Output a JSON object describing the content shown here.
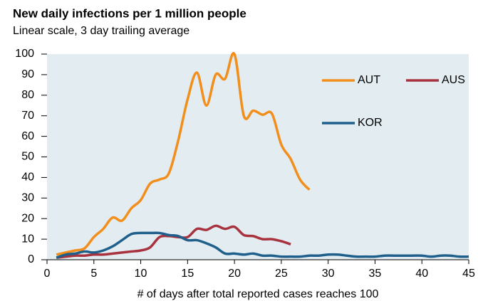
{
  "chart_data": {
    "type": "line",
    "title": "New daily infections per 1 million people",
    "subtitle": "Linear scale, 3 day trailing average",
    "x_label": "# of days after total reported cases reaches 100",
    "x": [
      1,
      2,
      3,
      4,
      5,
      6,
      7,
      8,
      9,
      10,
      11,
      12,
      13,
      14,
      15,
      16,
      17,
      18,
      19,
      20,
      21,
      22,
      23,
      24,
      25,
      26,
      27,
      28,
      29,
      30,
      31,
      32,
      33,
      34,
      35,
      36,
      37,
      38,
      39,
      40,
      41,
      42,
      43,
      44,
      45
    ],
    "series": [
      {
        "name": "AUT",
        "color": "#f28e1c",
        "values": [
          2.5,
          3.5,
          4.5,
          5.5,
          11,
          15,
          20.5,
          19,
          25,
          29,
          37,
          39,
          42,
          58,
          78,
          91,
          75,
          90,
          88,
          100,
          70,
          72.5,
          70.5,
          71,
          56,
          49,
          39,
          34,
          null,
          null,
          null,
          null,
          null,
          null,
          null,
          null,
          null,
          null,
          null,
          null,
          null,
          null,
          null,
          null,
          null
        ]
      },
      {
        "name": "AUS",
        "color": "#a8323e",
        "values": [
          1,
          1.5,
          2,
          2,
          2.5,
          2.5,
          3,
          3.5,
          4,
          4.5,
          6,
          11,
          11.5,
          11,
          11,
          15,
          14.5,
          16.5,
          15,
          16,
          12,
          11.5,
          10,
          10,
          9,
          7.5,
          null,
          null,
          null,
          null,
          null,
          null,
          null,
          null,
          null,
          null,
          null,
          null,
          null,
          null,
          null,
          null,
          null,
          null,
          null
        ]
      },
      {
        "name": "KOR",
        "color": "#1f5f8b",
        "values": [
          1,
          2.5,
          3,
          4,
          3.5,
          4.5,
          6.5,
          9.5,
          12.5,
          13,
          13,
          13,
          12,
          11.5,
          9.5,
          9.5,
          8,
          6,
          3,
          3,
          2.5,
          3,
          2,
          2,
          1.5,
          1.5,
          1.5,
          2,
          2,
          2.5,
          2.5,
          2,
          1.5,
          1.5,
          1.5,
          2,
          2,
          2,
          2,
          2,
          1.5,
          2,
          2,
          1.5,
          1.5
        ]
      }
    ],
    "xlim": [
      0,
      45
    ],
    "xticks": [
      0,
      5,
      10,
      15,
      20,
      25,
      30,
      35,
      40,
      45
    ],
    "ylim": [
      0,
      100
    ],
    "yticks": [
      0,
      10,
      20,
      30,
      40,
      50,
      60,
      70,
      80,
      90,
      100
    ],
    "legend": "upper right"
  }
}
